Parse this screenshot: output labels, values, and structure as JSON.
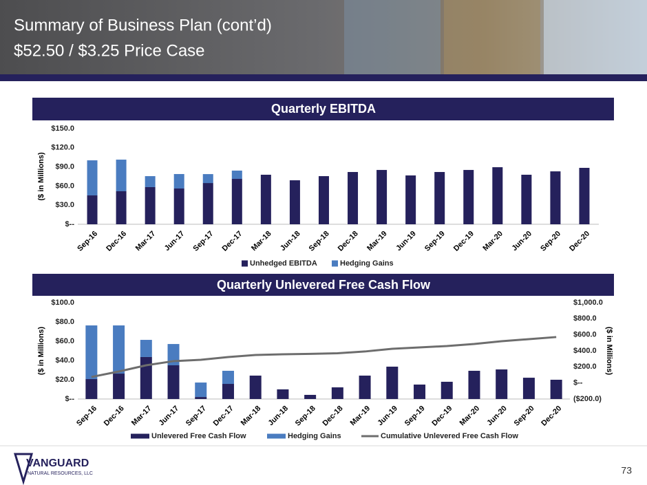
{
  "header": {
    "title": "Summary of Business Plan (cont’d)",
    "subtitle": "$52.50 / $3.25 Price Case"
  },
  "chart_data": [
    {
      "type": "bar",
      "stacked": true,
      "title": "Quarterly EBITDA",
      "y_label": "($ in Millions)",
      "categories": [
        "Sep-16",
        "Dec-16",
        "Mar-17",
        "Jun-17",
        "Sep-17",
        "Dec-17",
        "Mar-18",
        "Jun-18",
        "Sep-18",
        "Dec-18",
        "Mar-19",
        "Jun-19",
        "Sep-19",
        "Dec-19",
        "Mar-20",
        "Jun-20",
        "Sep-20",
        "Dec-20"
      ],
      "series": [
        {
          "name": "Unhedged EBITDA",
          "color": "#25215c",
          "values": [
            45.3,
            51.8,
            58.3,
            56.1,
            64.7,
            71.2,
            77.7,
            69.0,
            75.5,
            82.0,
            85.2,
            76.6,
            82.0,
            85.2,
            89.5,
            77.7,
            83.0,
            88.5
          ]
        },
        {
          "name": "Hedging Gains",
          "color": "#4a7cc0",
          "values": [
            55.0,
            49.6,
            17.2,
            22.7,
            14.0,
            13.0,
            0,
            0,
            0,
            0,
            0,
            0,
            0,
            0,
            0,
            0,
            0,
            0
          ]
        }
      ],
      "ylim": [
        0,
        150
      ],
      "yticks": [
        {
          "value": 0,
          "label": "$--"
        },
        {
          "value": 30,
          "label": "$30.0"
        },
        {
          "value": 60,
          "label": "$60.0"
        },
        {
          "value": 90,
          "label": "$90.0"
        },
        {
          "value": 120,
          "label": "$120.0"
        },
        {
          "value": 150,
          "label": "$150.0"
        }
      ],
      "grid": false
    },
    {
      "type": "bar",
      "stacked": true,
      "title": "Quarterly Unlevered Free Cash Flow",
      "y_label": "($ in Millions)",
      "y2_label": "($ in Millions)",
      "categories": [
        "Sep-16",
        "Dec-16",
        "Mar-17",
        "Jun-17",
        "Sep-17",
        "Dec-17",
        "Mar-18",
        "Jun-18",
        "Sep-18",
        "Dec-18",
        "Mar-19",
        "Jun-19",
        "Sep-19",
        "Dec-19",
        "Mar-20",
        "Jun-20",
        "Sep-20",
        "Dec-20"
      ],
      "series": [
        {
          "name": "Unlevered Free Cash Flow",
          "color": "#25215c",
          "values": [
            20.7,
            26.4,
            43.6,
            35.0,
            2.1,
            15.7,
            24.3,
            10.0,
            4.3,
            12.1,
            24.3,
            33.6,
            15.0,
            17.9,
            29.3,
            30.7,
            22.1,
            20.0
          ]
        },
        {
          "name": "Hedging Gains",
          "color": "#4a7cc0",
          "values": [
            55.7,
            50.0,
            17.8,
            22.1,
            15.0,
            13.6,
            0,
            0,
            0,
            0,
            0,
            0,
            0,
            0,
            0,
            0,
            0,
            0
          ]
        },
        {
          "name": "Cumulative Unlevered Free Cash Flow",
          "color": "#6d6d6d",
          "type": "line",
          "axis": "y2",
          "values": [
            75,
            143,
            220,
            272,
            289,
            323,
            349,
            357,
            362,
            370,
            392,
            426,
            443,
            460,
            486,
            520,
            546,
            572
          ]
        }
      ],
      "ylim": [
        0,
        100
      ],
      "yticks": [
        {
          "value": 0,
          "label": "$--"
        },
        {
          "value": 20,
          "label": "$20.0"
        },
        {
          "value": 40,
          "label": "$40.0"
        },
        {
          "value": 60,
          "label": "$60.0"
        },
        {
          "value": 80,
          "label": "$80.0"
        },
        {
          "value": 100,
          "label": "$100.0"
        }
      ],
      "y2lim": [
        -200,
        1000
      ],
      "y2ticks": [
        {
          "value": -200,
          "label": "($200.0)"
        },
        {
          "value": 0,
          "label": "$--"
        },
        {
          "value": 200,
          "label": "$200.0"
        },
        {
          "value": 400,
          "label": "$400.0"
        },
        {
          "value": 600,
          "label": "$600.0"
        },
        {
          "value": 800,
          "label": "$800.0"
        },
        {
          "value": 1000,
          "label": "$1,000.0"
        }
      ],
      "grid": false
    }
  ],
  "footer": {
    "logo_name": "VANGUARD",
    "logo_sub": "NATURAL RESOURCES, LLC",
    "page_number": "73"
  }
}
